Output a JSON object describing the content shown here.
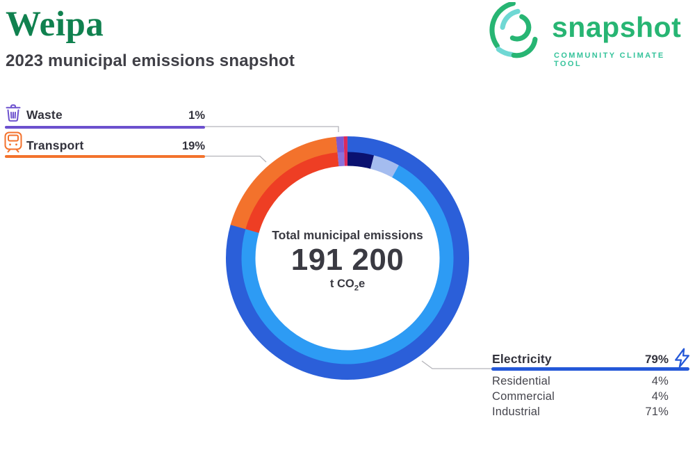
{
  "header": {
    "title": "Weipa",
    "subtitle": "2023 municipal emissions snapshot",
    "title_color": "#10814F",
    "subtitle_color": "#3F3F46"
  },
  "logo": {
    "wordmark": "snapshot",
    "tagline": "COMMUNITY CLIMATE TOOL",
    "green": "#27B573",
    "cyan": "#6FD8D4",
    "tagline_color": "#35C39B"
  },
  "donut_center": {
    "label": "Total municipal emissions",
    "value": "191 200",
    "unit_prefix": "t CO",
    "unit_sub": "2",
    "unit_suffix": "e"
  },
  "callouts": {
    "waste": {
      "label": "Waste",
      "value": "1%",
      "bar_color": "#6C50CE",
      "icon_color": "#6C50CE"
    },
    "transport": {
      "label": "Transport",
      "value": "19%",
      "bar_color": "#F3722C",
      "icon_color": "#F3722C"
    },
    "electricity": {
      "label": "Electricity",
      "value": "79%",
      "bar_color": "#2458D8",
      "icon_color": "#2458D8",
      "breakdown": [
        {
          "label": "Residential",
          "value": "4%"
        },
        {
          "label": "Commercial",
          "value": "4%"
        },
        {
          "label": "Industrial",
          "value": "71%"
        }
      ]
    }
  },
  "chart_data": {
    "type": "donut",
    "title": "Total municipal emissions",
    "total_label": "191 200",
    "total_value": 191200,
    "unit": "t CO2e",
    "start": "top",
    "direction": "clockwise",
    "legend_position": "external-callouts",
    "rings": {
      "outer_sectors": [
        {
          "name": "Electricity",
          "pct": 79,
          "color": "#2B5FD9"
        },
        {
          "name": "Transport",
          "pct": 19,
          "color": "#F3722C"
        },
        {
          "name": "Waste",
          "pct": 1,
          "color": "#7A5BD4"
        },
        {
          "name": "sliver",
          "pct": 0.5,
          "color": "#DB2A5C"
        }
      ],
      "inner_subsectors": [
        {
          "name": "Electricity Residential",
          "pct": 4,
          "color": "#0A1170"
        },
        {
          "name": "Electricity Commercial",
          "pct": 4,
          "color": "#A4BCEF"
        },
        {
          "name": "Electricity Industrial",
          "pct": 71,
          "color": "#2D9BF4"
        },
        {
          "name": "Transport",
          "pct": 19,
          "color": "#EE3E24"
        },
        {
          "name": "Waste",
          "pct": 1,
          "color": "#8A72DC"
        },
        {
          "name": "sliver",
          "pct": 0.5,
          "color": "#DB2A5C"
        }
      ]
    }
  },
  "leader_color": "#B4B4BA"
}
